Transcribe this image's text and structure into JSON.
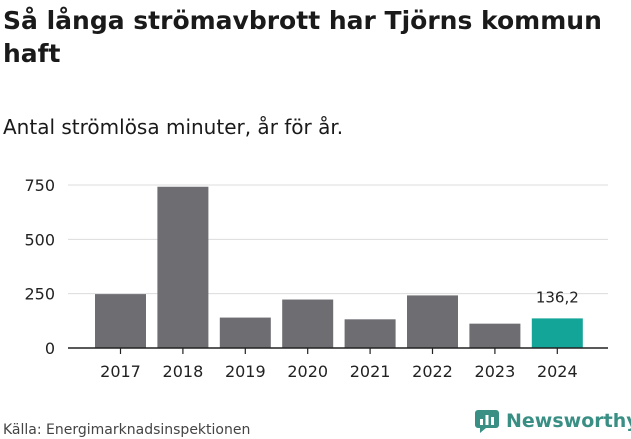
{
  "title_lines": [
    "Så långa strömavbrott har Tjörns kommun",
    "haft"
  ],
  "subtitle": "Antal strömlösa minuter, år för år.",
  "source": "Källa: Energimarknadsinspektionen",
  "brand": "Newsworthy",
  "colors": {
    "bar": "#6e6d72",
    "highlight": "#13a597",
    "grid": "#dcdcdc",
    "axis": "#222222",
    "brand": "#3a8f85"
  },
  "chart_data": {
    "type": "bar",
    "categories": [
      "2017",
      "2018",
      "2019",
      "2020",
      "2021",
      "2022",
      "2023",
      "2024"
    ],
    "values": [
      248,
      742,
      140,
      223,
      132,
      242,
      112,
      136.2
    ],
    "highlight_index": 7,
    "data_labels": [
      {
        "index": 7,
        "text": "136,2"
      }
    ],
    "yticks": [
      0,
      250,
      500,
      750
    ],
    "ylim": [
      0,
      780
    ],
    "grid": true
  }
}
